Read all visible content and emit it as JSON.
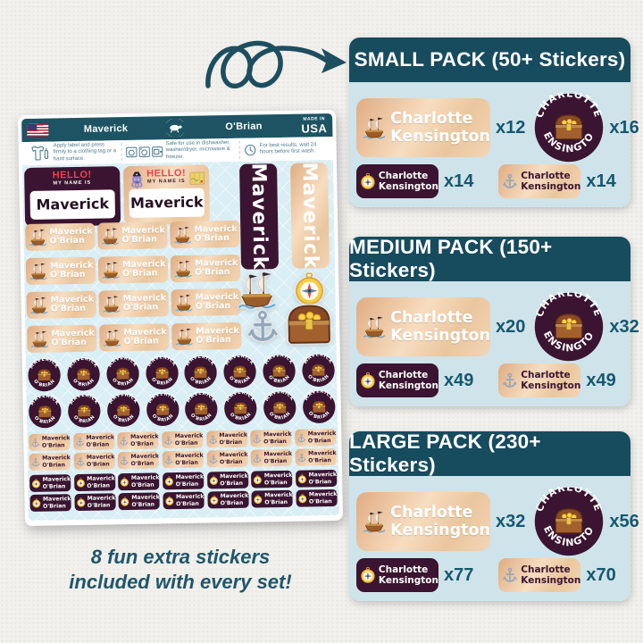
{
  "sheet": {
    "header": {
      "first_name": "Maverick",
      "last_name": "O'Brian",
      "made_in_line1": "MADE IN",
      "made_in_line2": "USA"
    },
    "instructions": [
      {
        "icon": "tshirt-icon",
        "text": "Apply label and press firmly to a clothing tag or a hard surface."
      },
      {
        "icon": "appliances-icon",
        "text": "Safe for use in dishwasher, washer/dryer, microwave & freezer."
      },
      {
        "icon": "clock-icon",
        "text": "For best results, wait 24 hours before first wash."
      }
    ],
    "hello": {
      "line1": "HELLO!",
      "line2": "MY NAME IS"
    },
    "name": {
      "first": "Maverick",
      "last": "O'Brian"
    },
    "round_text": {
      "top": "MAVERICK",
      "bottom": "O'BRIAN"
    },
    "grids": {
      "ship_labels": {
        "count": 12,
        "cols": 3
      },
      "round_stickers": {
        "count": 16,
        "per_row": 8
      },
      "anchor_labels": {
        "count": 14,
        "per_row": 7
      },
      "compass_labels": {
        "count": 14,
        "per_row": 7
      }
    }
  },
  "caption": {
    "line1": "8 fun extra stickers",
    "line2": "included with every set!"
  },
  "packs_name": {
    "first": "Charlotte",
    "last": "Kensington",
    "round_top": "CHARLOTTE",
    "round_bottom": "KENSINGTON"
  },
  "packs": [
    {
      "title": "SMALL PACK (50+ Stickers)",
      "items": [
        {
          "type": "ship-rect-label",
          "count": "x12"
        },
        {
          "type": "round-sticker",
          "count": "x16"
        },
        {
          "type": "compass-rect-label",
          "count": "x14"
        },
        {
          "type": "anchor-rect-label",
          "count": "x14"
        }
      ]
    },
    {
      "title": "MEDIUM PACK (150+ Stickers)",
      "items": [
        {
          "type": "ship-rect-label",
          "count": "x20"
        },
        {
          "type": "round-sticker",
          "count": "x32"
        },
        {
          "type": "compass-rect-label",
          "count": "x49"
        },
        {
          "type": "anchor-rect-label",
          "count": "x49"
        }
      ]
    },
    {
      "title": "LARGE PACK (230+ Stickers)",
      "items": [
        {
          "type": "ship-rect-label",
          "count": "x32"
        },
        {
          "type": "round-sticker",
          "count": "x56"
        },
        {
          "type": "compass-rect-label",
          "count": "x77"
        },
        {
          "type": "anchor-rect-label",
          "count": "x70"
        }
      ]
    }
  ],
  "colors": {
    "background": "#f1f0ec",
    "teal_header": "#174b5e",
    "sheet_header": "#1d5363",
    "panel_body": "#cfe3ea",
    "sheet_body": "#d9eef5",
    "plum": "#3a1430",
    "tan_light": "#f7ddc0",
    "tan_dark": "#e0ac82",
    "count_text": "#15586f",
    "hello_red": "#e8454f",
    "arrow": "#1d4e5f"
  }
}
